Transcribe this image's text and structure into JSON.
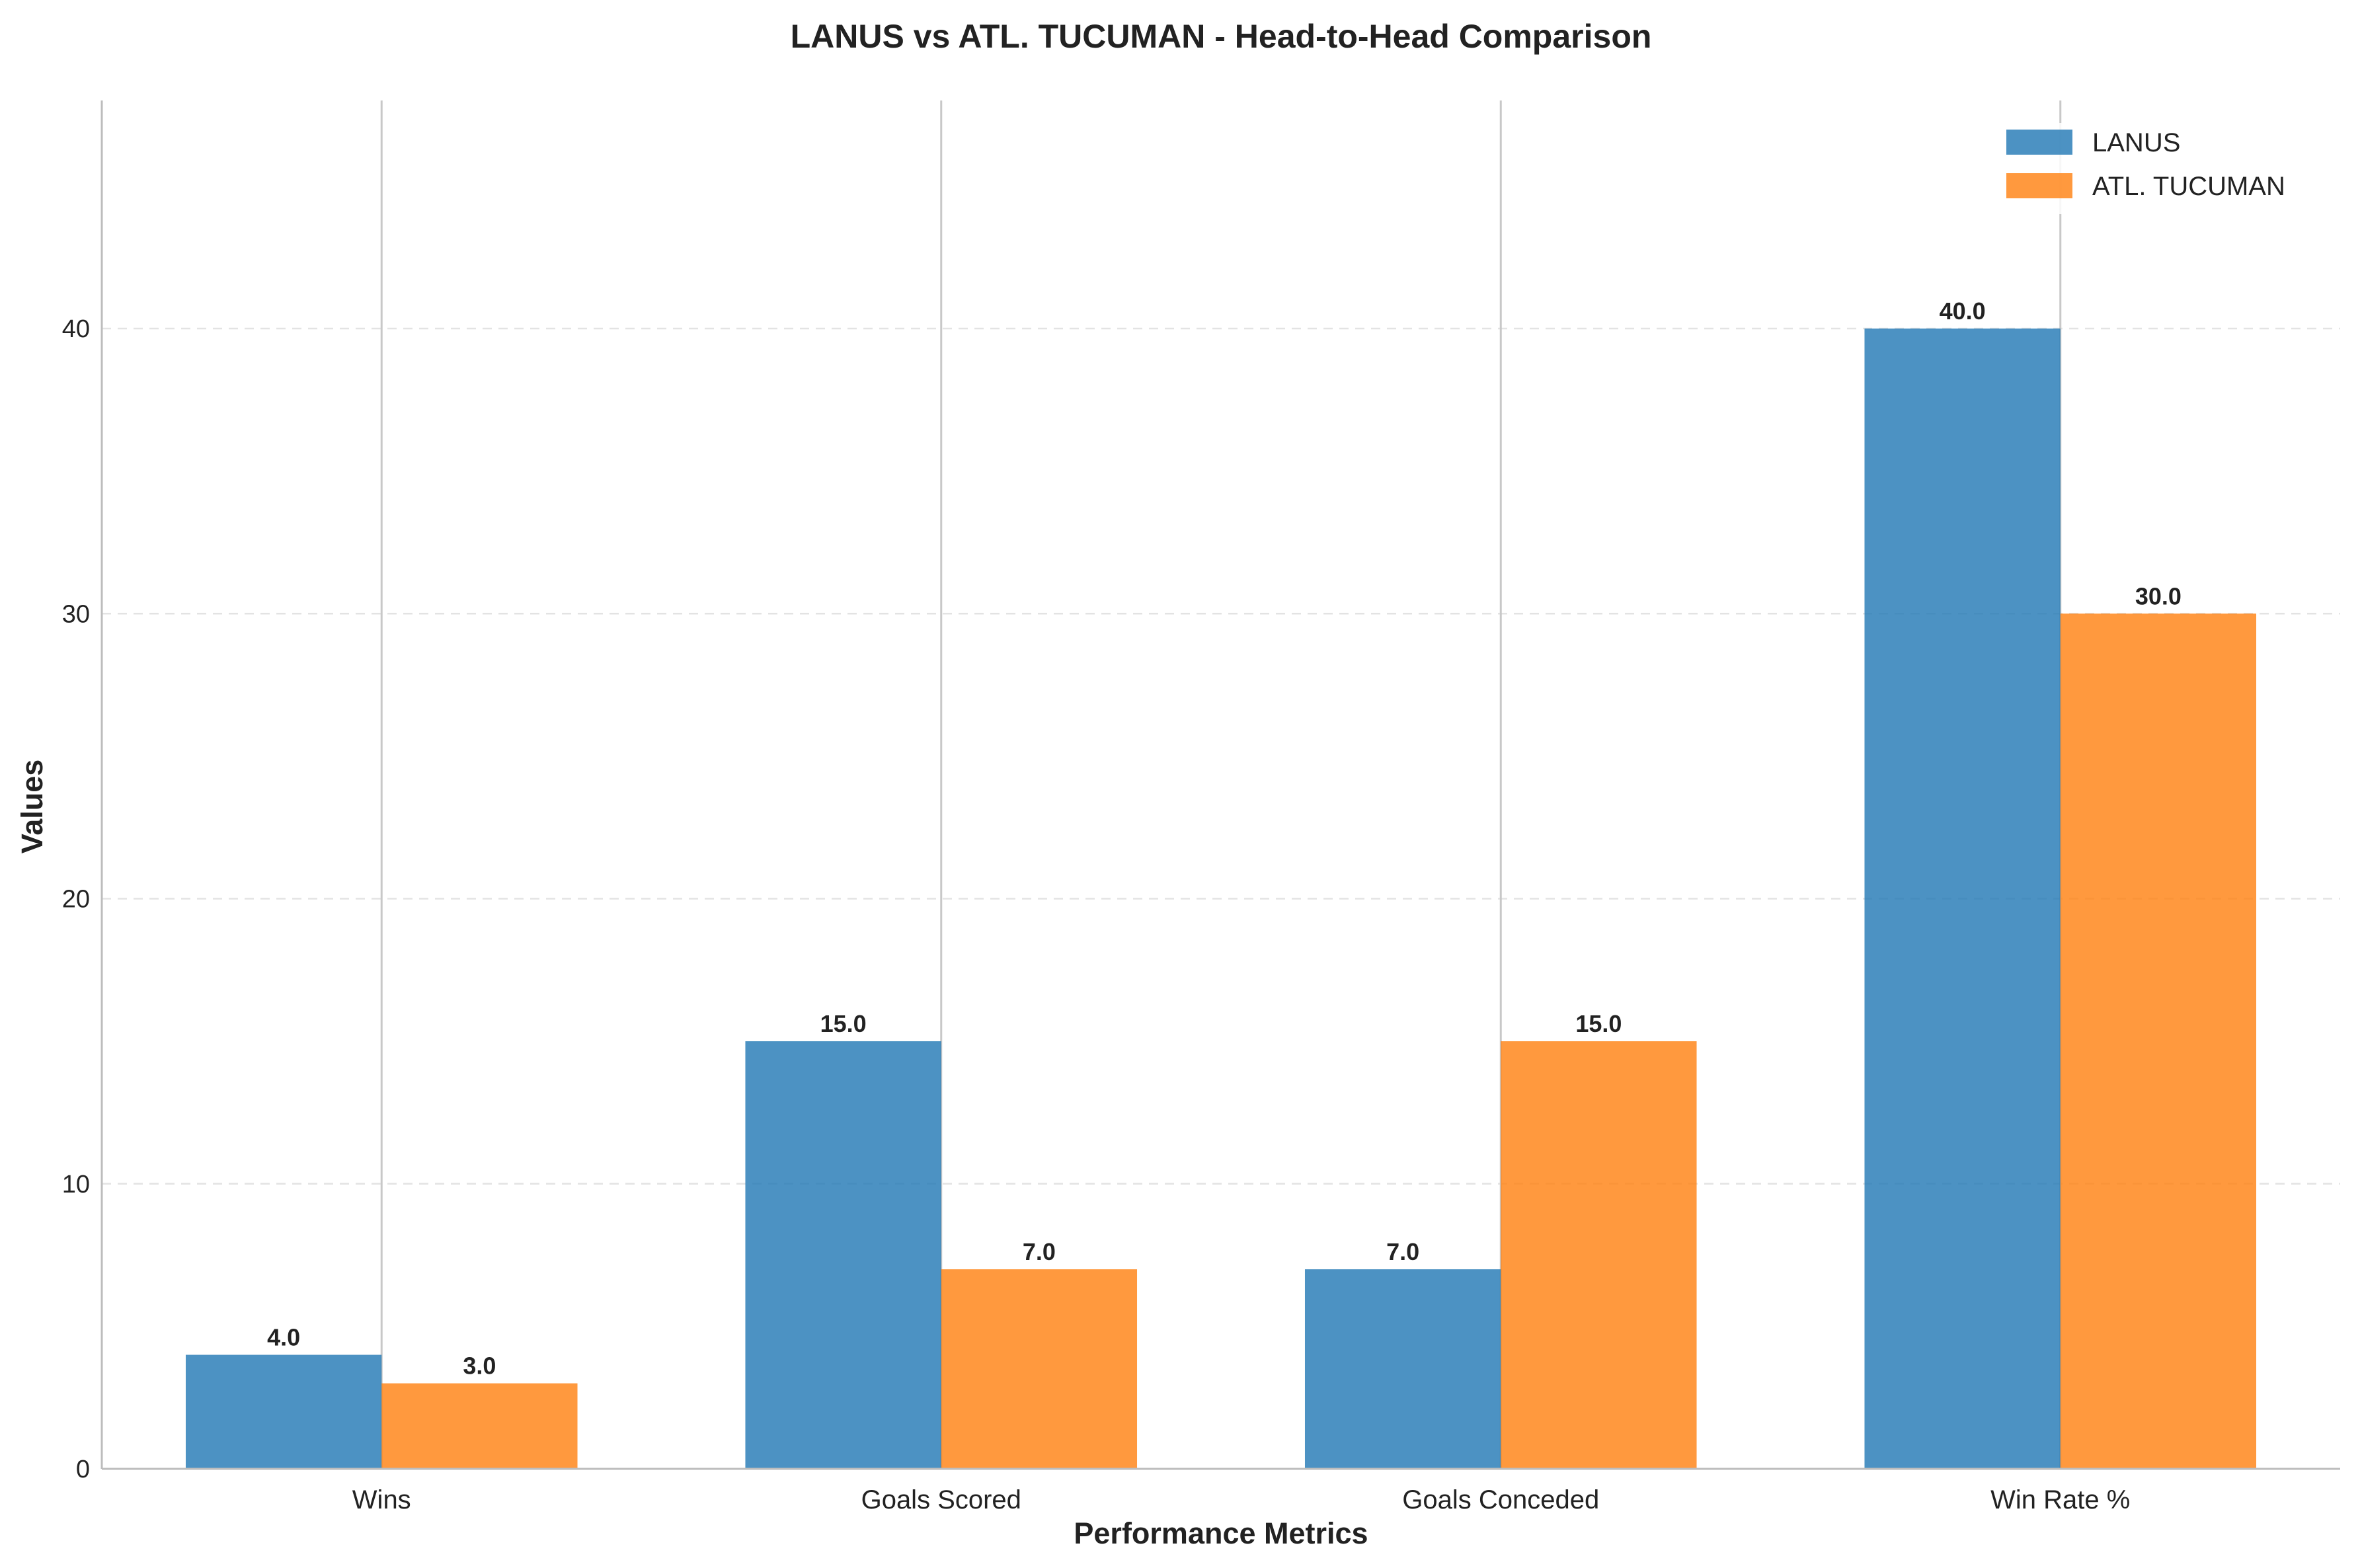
{
  "chart_data": {
    "type": "bar",
    "title": "LANUS vs ATL. TUCUMAN - Head-to-Head Comparison",
    "xlabel": "Performance Metrics",
    "ylabel": "Values",
    "categories": [
      "Wins",
      "Goals Scored",
      "Goals Conceded",
      "Win Rate %"
    ],
    "series": [
      {
        "name": "LANUS",
        "values": [
          4.0,
          15.0,
          7.0,
          40.0
        ],
        "color": "#1f77b4",
        "labels": [
          "4.0",
          "15.0",
          "7.0",
          "40.0"
        ]
      },
      {
        "name": "ATL. TUCUMAN",
        "values": [
          3.0,
          7.0,
          15.0,
          30.0
        ],
        "color": "#ff7f0e",
        "labels": [
          "3.0",
          "7.0",
          "15.0",
          "30.0"
        ]
      }
    ],
    "ylim": [
      0,
      48
    ],
    "yticks": [
      0,
      10,
      20,
      30,
      40
    ],
    "grid": {
      "y": "dashed",
      "x": "solid-at-category-centers"
    },
    "legend": {
      "position": "top-right"
    }
  }
}
